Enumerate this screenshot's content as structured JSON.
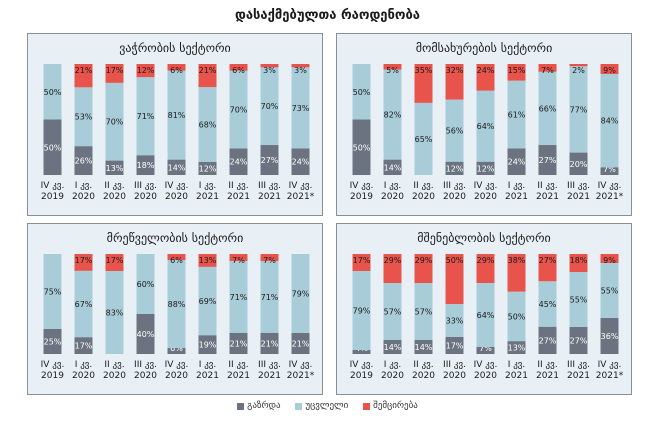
{
  "title": "დასაქმებულთა რაოდენობა",
  "colors": {
    "increase": "#6b7380",
    "unchanged": "#a9ccd9",
    "decrease": "#e8544b"
  },
  "legend": {
    "increase": "გაზრდა",
    "unchanged": "უცვლელი",
    "decrease": "შემცირება"
  },
  "categories": [
    [
      "IV კვ.",
      "2019"
    ],
    [
      "I კვ.",
      "2020"
    ],
    [
      "II კვ.",
      "2020"
    ],
    [
      "III კვ.",
      "2020"
    ],
    [
      "IV კვ.",
      "2020"
    ],
    [
      "I კვ.",
      "2021"
    ],
    [
      "II კვ.",
      "2021"
    ],
    [
      "III კვ.",
      "2021"
    ],
    [
      "IV კვ.",
      "2021*"
    ]
  ],
  "chart_data": [
    {
      "type": "bar",
      "title": "ვაჭრობის სექტორი",
      "categories": [
        "IV კვ. 2019",
        "I კვ. 2020",
        "II კვ. 2020",
        "III კვ. 2020",
        "IV კვ. 2020",
        "I კვ. 2021",
        "II კვ. 2021",
        "III კვ. 2021",
        "IV კვ. 2021*"
      ],
      "series": [
        {
          "name": "გაზრდა",
          "values": [
            50,
            26,
            13,
            18,
            14,
            12,
            24,
            27,
            24
          ]
        },
        {
          "name": "უცვლელი",
          "values": [
            50,
            53,
            70,
            71,
            81,
            68,
            70,
            70,
            73
          ]
        },
        {
          "name": "შემცირება",
          "values": [
            0,
            21,
            17,
            12,
            6,
            21,
            6,
            3,
            3
          ]
        }
      ]
    },
    {
      "type": "bar",
      "title": "მომსახურების სექტორი",
      "categories": [
        "IV კვ. 2019",
        "I კვ. 2020",
        "II კვ. 2020",
        "III კვ. 2020",
        "IV კვ. 2020",
        "I კვ. 2021",
        "II კვ. 2021",
        "III კვ. 2021",
        "IV კვ. 2021*"
      ],
      "series": [
        {
          "name": "გაზრდა",
          "values": [
            50,
            14,
            0,
            12,
            12,
            24,
            27,
            20,
            7
          ]
        },
        {
          "name": "უცვლელი",
          "values": [
            50,
            82,
            65,
            56,
            64,
            61,
            66,
            77,
            84
          ]
        },
        {
          "name": "შემცირება",
          "values": [
            0,
            5,
            35,
            32,
            24,
            15,
            7,
            2,
            9
          ]
        }
      ]
    },
    {
      "type": "bar",
      "title": "მრეწველობის სექტორი",
      "categories": [
        "IV კვ. 2019",
        "I კვ. 2020",
        "II კვ. 2020",
        "III კვ. 2020",
        "IV კვ. 2020",
        "I კვ. 2021",
        "II კვ. 2021",
        "III კვ. 2021",
        "IV კვ. 2021*"
      ],
      "series": [
        {
          "name": "გაზრდა",
          "values": [
            25,
            17,
            0,
            40,
            6,
            19,
            21,
            21,
            21
          ]
        },
        {
          "name": "უცვლელი",
          "values": [
            75,
            67,
            83,
            60,
            88,
            69,
            71,
            71,
            79
          ]
        },
        {
          "name": "შემცირება",
          "values": [
            0,
            17,
            17,
            0,
            6,
            13,
            7,
            7,
            0
          ]
        }
      ]
    },
    {
      "type": "bar",
      "title": "მშენებლობის სექტორი",
      "categories": [
        "IV კვ. 2019",
        "I კვ. 2020",
        "II კვ. 2020",
        "III კვ. 2020",
        "IV კვ. 2020",
        "I კვ. 2021",
        "II კვ. 2021",
        "III კვ. 2021",
        "IV კვ. 2021*"
      ],
      "series": [
        {
          "name": "გაზრდა",
          "values": [
            4,
            14,
            14,
            17,
            7,
            13,
            27,
            27,
            36
          ]
        },
        {
          "name": "უცვლელი",
          "values": [
            79,
            57,
            57,
            33,
            64,
            50,
            45,
            55,
            55
          ]
        },
        {
          "name": "შემცირება",
          "values": [
            17,
            29,
            29,
            50,
            29,
            38,
            27,
            18,
            9
          ]
        }
      ]
    }
  ]
}
